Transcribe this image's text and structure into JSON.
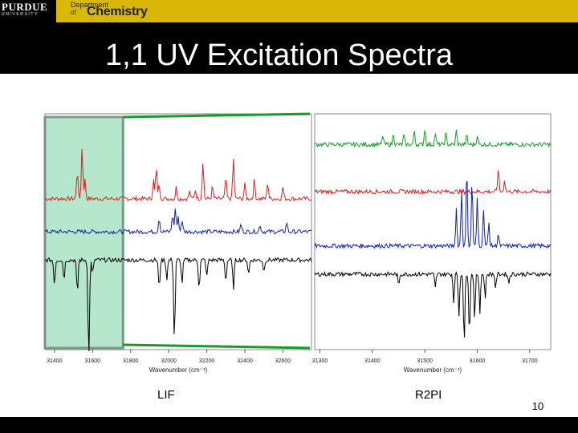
{
  "header": {
    "logo_word": "PURDUE",
    "logo_sub": "UNIVERSITY",
    "dept_line1": "Department",
    "dept_line2": "of",
    "dept_line3": "Chemistry"
  },
  "slide": {
    "title": "1,1 UV Excitation Spectra",
    "label_left": "LIF",
    "label_right": "R2PI",
    "page_number": "10"
  },
  "colors": {
    "highlight": "#b6e6cc",
    "green": "#1a9a2a",
    "red": "#d42222",
    "blue": "#1020a0",
    "black": "#000000",
    "gold": "#d9b80a"
  },
  "chart_data": [
    {
      "type": "line",
      "name": "LIF",
      "xlabel": "Wavenumber (cm⁻¹)",
      "xlim": [
        31350,
        32750
      ],
      "x_ticks": [
        31400,
        31600,
        31800,
        32000,
        32200,
        32400,
        32600
      ],
      "highlight_range": [
        31350,
        31760
      ],
      "series": [
        {
          "color": "red",
          "baseline": 0.64,
          "peaks": [
            [
              31520,
              0.12
            ],
            [
              31545,
              0.22
            ],
            [
              31560,
              0.08
            ],
            [
              31920,
              0.08
            ],
            [
              31935,
              0.13
            ],
            [
              31950,
              0.06
            ],
            [
              32040,
              0.05
            ],
            [
              32110,
              0.03
            ],
            [
              32140,
              0.04
            ],
            [
              32180,
              0.16
            ],
            [
              32230,
              0.05
            ],
            [
              32300,
              0.09
            ],
            [
              32340,
              0.17
            ],
            [
              32400,
              0.06
            ],
            [
              32450,
              0.08
            ],
            [
              32520,
              0.07
            ],
            [
              32600,
              0.05
            ]
          ]
        },
        {
          "color": "blue",
          "baseline": 0.5,
          "peaks": [
            [
              31950,
              0.06
            ],
            [
              32020,
              0.07
            ],
            [
              32035,
              0.1
            ],
            [
              32050,
              0.06
            ],
            [
              32070,
              0.05
            ],
            [
              32380,
              0.03
            ],
            [
              32480,
              0.03
            ],
            [
              32620,
              0.04
            ]
          ]
        },
        {
          "color": "black",
          "baseline": 0.38,
          "peaks": [
            [
              31400,
              -0.1
            ],
            [
              31450,
              -0.08
            ],
            [
              31520,
              -0.14
            ],
            [
              31580,
              -0.42
            ],
            [
              31600,
              -0.06
            ],
            [
              31950,
              -0.12
            ],
            [
              31990,
              -0.08
            ],
            [
              32030,
              -0.34
            ],
            [
              32070,
              -0.1
            ],
            [
              32160,
              -0.12
            ],
            [
              32200,
              -0.07
            ],
            [
              32300,
              -0.09
            ],
            [
              32340,
              -0.12
            ],
            [
              32420,
              -0.06
            ],
            [
              32500,
              -0.05
            ]
          ]
        }
      ]
    },
    {
      "type": "line",
      "name": "R2PI",
      "xlabel": "Wavenumber (cm⁻¹)",
      "xlim": [
        31290,
        31740
      ],
      "x_ticks": [
        31300,
        31400,
        31500,
        31600,
        31700
      ],
      "series": [
        {
          "color": "green",
          "baseline": 0.87,
          "peaks": [
            [
              31420,
              0.04
            ],
            [
              31440,
              0.05
            ],
            [
              31460,
              0.04
            ],
            [
              31480,
              0.06
            ],
            [
              31500,
              0.07
            ],
            [
              31520,
              0.05
            ],
            [
              31540,
              0.05
            ],
            [
              31560,
              0.06
            ],
            [
              31580,
              0.04
            ],
            [
              31600,
              0.04
            ]
          ]
        },
        {
          "color": "red",
          "baseline": 0.67,
          "peaks": [
            [
              31640,
              0.1
            ],
            [
              31652,
              0.05
            ]
          ]
        },
        {
          "color": "blue",
          "baseline": 0.44,
          "peaks": [
            [
              31560,
              0.16
            ],
            [
              31570,
              0.24
            ],
            [
              31580,
              0.34
            ],
            [
              31590,
              0.28
            ],
            [
              31600,
              0.2
            ],
            [
              31612,
              0.16
            ],
            [
              31622,
              0.1
            ],
            [
              31640,
              0.05
            ]
          ]
        },
        {
          "color": "black",
          "baseline": 0.32,
          "peaks": [
            [
              31450,
              -0.05
            ],
            [
              31520,
              -0.06
            ],
            [
              31555,
              -0.12
            ],
            [
              31565,
              -0.18
            ],
            [
              31575,
              -0.3
            ],
            [
              31585,
              -0.26
            ],
            [
              31595,
              -0.2
            ],
            [
              31605,
              -0.16
            ],
            [
              31615,
              -0.1
            ],
            [
              31635,
              -0.06
            ],
            [
              31660,
              -0.04
            ]
          ]
        }
      ]
    }
  ]
}
